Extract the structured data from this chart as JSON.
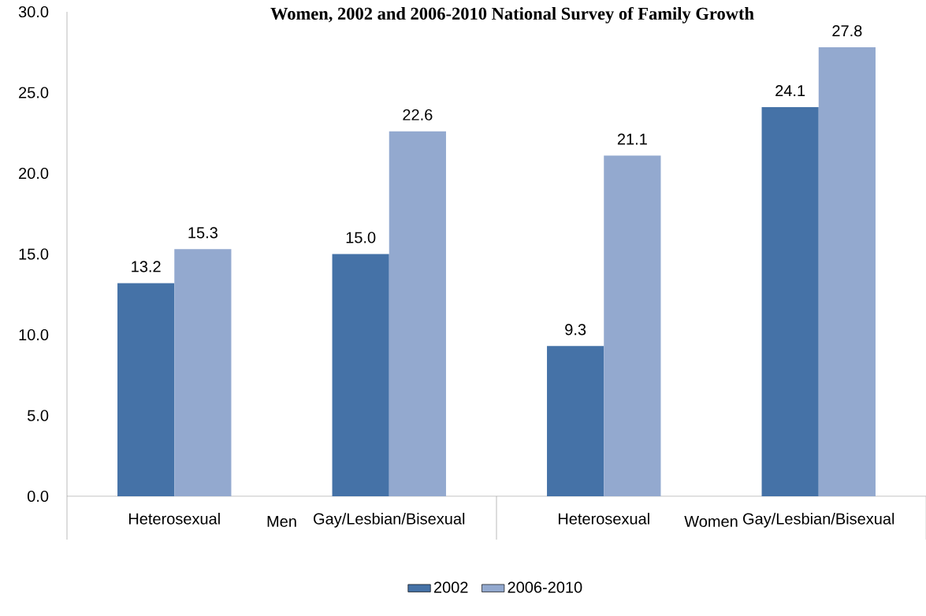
{
  "chart_data": {
    "type": "bar",
    "title": "Women, 2002 and 2006-2010 National Survey of Family Growth",
    "categories": [
      "Heterosexual",
      "Gay/Lesbian/Bisexual",
      "Heterosexual",
      "Gay/Lesbian/Bisexual"
    ],
    "series": [
      {
        "name": "2002",
        "color": "#4572a7",
        "values": [
          13.2,
          15.0,
          9.3,
          24.1
        ],
        "value_labels": [
          "13.2",
          "15.0",
          "9.3",
          "24.1"
        ]
      },
      {
        "name": "2006-2010",
        "color": "#93a9cf",
        "values": [
          15.3,
          22.6,
          21.1,
          27.8
        ],
        "value_labels": [
          "15.3",
          "22.6",
          "21.1",
          "27.8"
        ]
      }
    ],
    "annotations": [
      "Men",
      "Women"
    ],
    "ylim": [
      0,
      30
    ],
    "yticks": [
      {
        "value": 0,
        "label": "0.0"
      },
      {
        "value": 5,
        "label": "5.0"
      },
      {
        "value": 10,
        "label": "10.0"
      },
      {
        "value": 15,
        "label": "15.0"
      },
      {
        "value": 20,
        "label": "20.0"
      },
      {
        "value": 25,
        "label": "25.0"
      },
      {
        "value": 30,
        "label": "30.0"
      }
    ],
    "grid": false,
    "legend": "bottom"
  }
}
